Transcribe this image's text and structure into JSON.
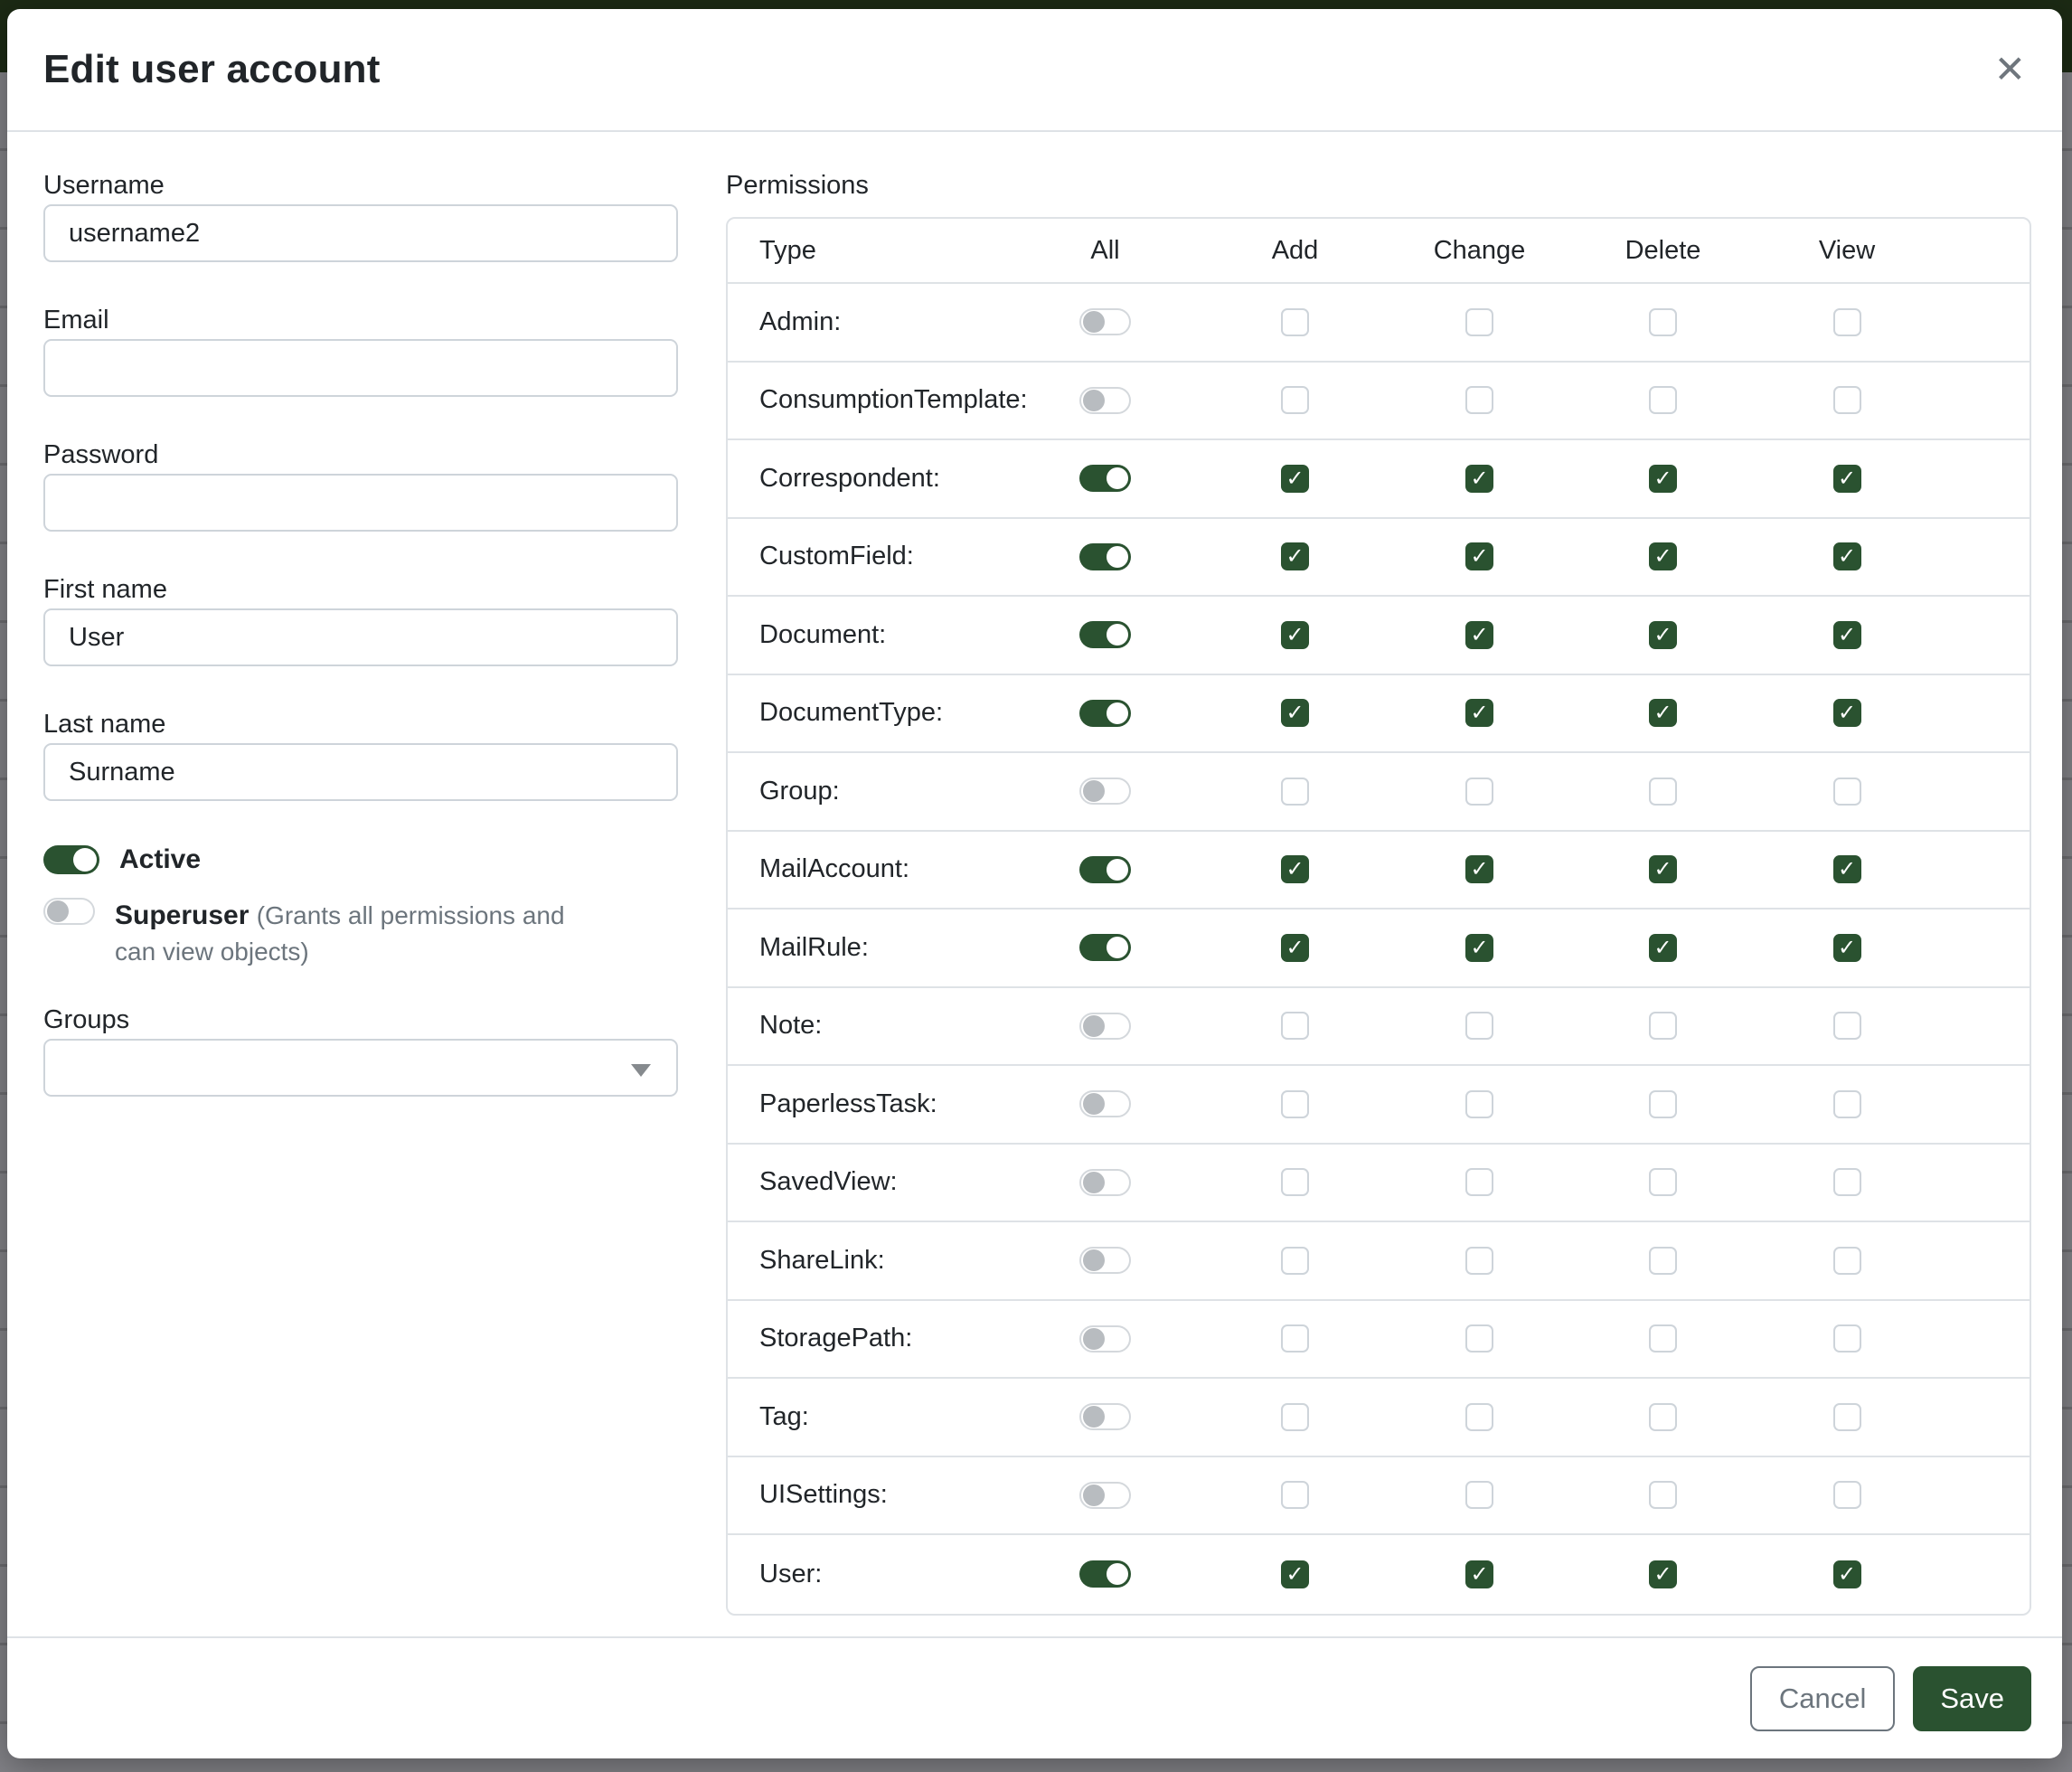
{
  "modal": {
    "title": "Edit user account",
    "close_icon": "✕"
  },
  "form": {
    "username": {
      "label": "Username",
      "value": "username2"
    },
    "email": {
      "label": "Email",
      "value": ""
    },
    "password": {
      "label": "Password",
      "value": ""
    },
    "first_name": {
      "label": "First name",
      "value": "User"
    },
    "last_name": {
      "label": "Last name",
      "value": "Surname"
    },
    "active": {
      "label": "Active",
      "enabled": true
    },
    "superuser": {
      "label": "Superuser",
      "note": "(Grants all permissions and can view objects)",
      "enabled": false
    },
    "groups": {
      "label": "Groups",
      "value": ""
    }
  },
  "permissions": {
    "label": "Permissions",
    "columns": [
      "Type",
      "All",
      "Add",
      "Change",
      "Delete",
      "View"
    ],
    "rows": [
      {
        "type": "Admin:",
        "all": false,
        "add": false,
        "change": false,
        "delete": false,
        "view": false
      },
      {
        "type": "ConsumptionTemplate:",
        "all": false,
        "add": false,
        "change": false,
        "delete": false,
        "view": false
      },
      {
        "type": "Correspondent:",
        "all": true,
        "add": true,
        "change": true,
        "delete": true,
        "view": true
      },
      {
        "type": "CustomField:",
        "all": true,
        "add": true,
        "change": true,
        "delete": true,
        "view": true
      },
      {
        "type": "Document:",
        "all": true,
        "add": true,
        "change": true,
        "delete": true,
        "view": true
      },
      {
        "type": "DocumentType:",
        "all": true,
        "add": true,
        "change": true,
        "delete": true,
        "view": true
      },
      {
        "type": "Group:",
        "all": false,
        "add": false,
        "change": false,
        "delete": false,
        "view": false
      },
      {
        "type": "MailAccount:",
        "all": true,
        "add": true,
        "change": true,
        "delete": true,
        "view": true
      },
      {
        "type": "MailRule:",
        "all": true,
        "add": true,
        "change": true,
        "delete": true,
        "view": true
      },
      {
        "type": "Note:",
        "all": false,
        "add": false,
        "change": false,
        "delete": false,
        "view": false
      },
      {
        "type": "PaperlessTask:",
        "all": false,
        "add": false,
        "change": false,
        "delete": false,
        "view": false
      },
      {
        "type": "SavedView:",
        "all": false,
        "add": false,
        "change": false,
        "delete": false,
        "view": false
      },
      {
        "type": "ShareLink:",
        "all": false,
        "add": false,
        "change": false,
        "delete": false,
        "view": false
      },
      {
        "type": "StoragePath:",
        "all": false,
        "add": false,
        "change": false,
        "delete": false,
        "view": false
      },
      {
        "type": "Tag:",
        "all": false,
        "add": false,
        "change": false,
        "delete": false,
        "view": false
      },
      {
        "type": "UISettings:",
        "all": false,
        "add": false,
        "change": false,
        "delete": false,
        "view": false
      },
      {
        "type": "User:",
        "all": true,
        "add": true,
        "change": true,
        "delete": true,
        "view": true
      }
    ]
  },
  "footer": {
    "cancel_label": "Cancel",
    "save_label": "Save"
  },
  "colors": {
    "primary_green": "#2a5230",
    "backdrop_green": "#1c2a14",
    "backdrop_gray": "#828287"
  }
}
